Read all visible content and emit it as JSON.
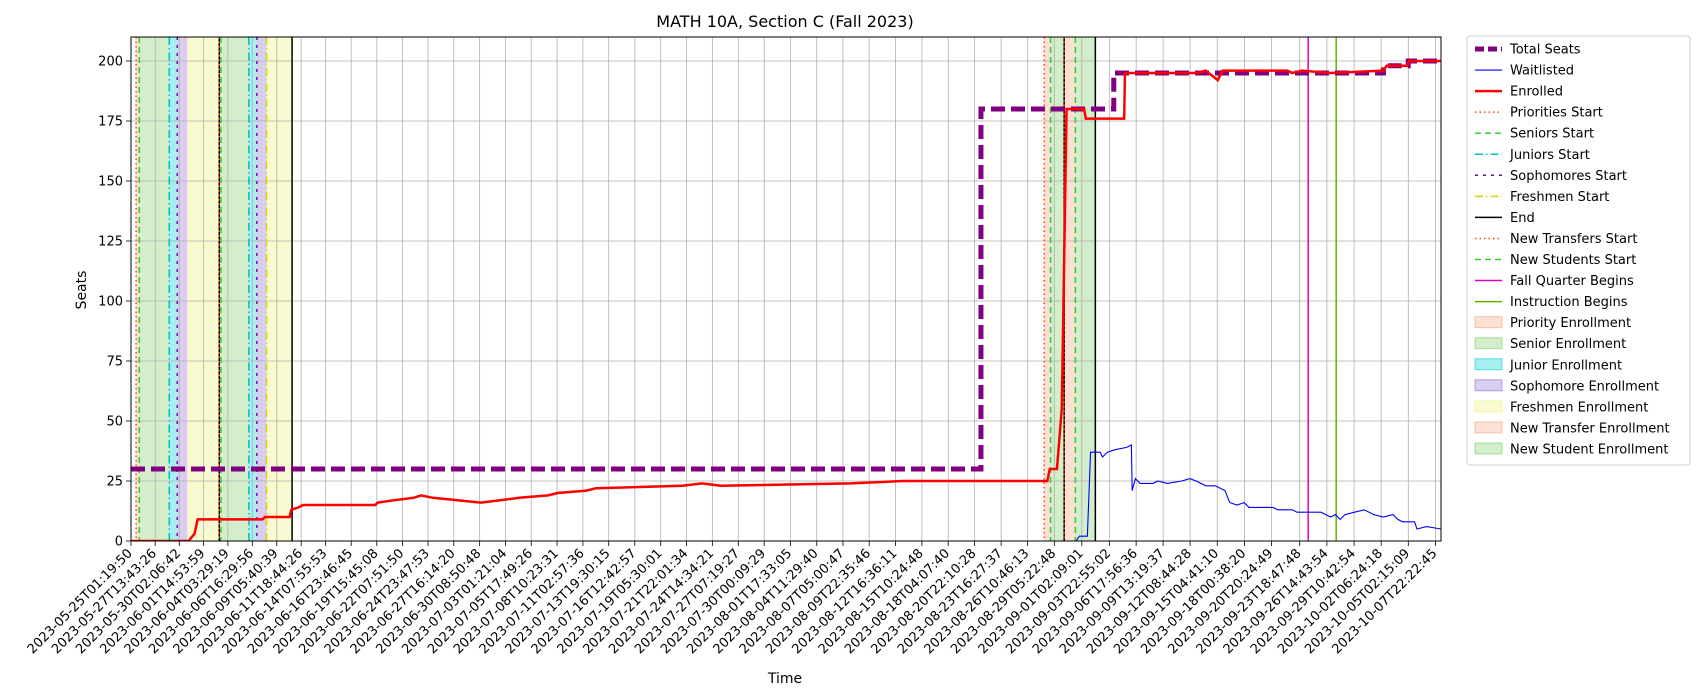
{
  "chart_data": {
    "type": "line",
    "title": "MATH 10A, Section C (Fall 2023)",
    "xlabel": "Time",
    "ylabel": "Seats",
    "ylim": [
      0,
      210
    ],
    "yticks": [
      0,
      25,
      50,
      75,
      100,
      125,
      150,
      175,
      200
    ],
    "grid": true,
    "legend_position": "outside-right",
    "x_start": "2023-05-25T01:19:50",
    "x_end": "2023-10-08T12:00:00",
    "xtick_labels": [
      "2023-05-25T01:19:50",
      "2023-05-27T13:43:26",
      "2023-05-30T02:06:42",
      "2023-06-01T14:53:59",
      "2023-06-04T03:29:19",
      "2023-06-06T16:29:56",
      "2023-06-09T05:40:39",
      "2023-06-11T18:44:26",
      "2023-06-14T07:55:53",
      "2023-06-16T23:46:45",
      "2023-06-19T15:45:08",
      "2023-06-22T07:51:50",
      "2023-06-24T23:47:53",
      "2023-06-27T16:14:20",
      "2023-06-30T08:50:48",
      "2023-07-03T01:21:04",
      "2023-07-05T17:49:26",
      "2023-07-08T10:23:31",
      "2023-07-11T02:57:36",
      "2023-07-13T19:30:15",
      "2023-07-16T12:42:57",
      "2023-07-19T05:30:01",
      "2023-07-21T22:01:34",
      "2023-07-24T14:34:21",
      "2023-07-27T07:19:27",
      "2023-07-30T00:09:29",
      "2023-08-01T17:33:05",
      "2023-08-04T11:29:40",
      "2023-08-07T05:00:47",
      "2023-08-09T22:35:46",
      "2023-08-12T16:36:11",
      "2023-08-15T10:24:48",
      "2023-08-18T04:07:40",
      "2023-08-20T22:10:28",
      "2023-08-23T16:27:37",
      "2023-08-26T10:46:13",
      "2023-08-29T05:22:48",
      "2023-09-01T02:09:01",
      "2023-09-03T22:55:02",
      "2023-09-06T17:56:36",
      "2023-09-09T13:19:37",
      "2023-09-12T08:44:28",
      "2023-09-15T04:41:10",
      "2023-09-18T00:38:20",
      "2023-09-20T20:24:49",
      "2023-09-23T18:47:48",
      "2023-09-26T14:43:54",
      "2023-09-29T10:42:54",
      "2023-10-02T06:24:18",
      "2023-10-05T02:15:09",
      "2023-10-07T22:22:45"
    ],
    "series": [
      {
        "name": "Total Seats",
        "color": "#800080",
        "style": "dashed-thick",
        "points": [
          [
            "2023-05-25T01:19:50",
            30
          ],
          [
            "2023-08-21T14:00:00",
            30
          ],
          [
            "2023-08-21T14:00:00",
            180
          ],
          [
            "2023-09-04T10:00:00",
            180
          ],
          [
            "2023-09-04T10:00:00",
            195
          ],
          [
            "2023-09-29T00:00:00",
            195
          ],
          [
            "2023-09-29T00:00:00",
            195
          ],
          [
            "2023-10-02T12:00:00",
            195
          ],
          [
            "2023-10-02T12:00:00",
            198
          ],
          [
            "2023-10-05T02:00:00",
            198
          ],
          [
            "2023-10-05T02:00:00",
            200
          ],
          [
            "2023-10-08T12:00:00",
            200
          ]
        ]
      },
      {
        "name": "Waitlisted",
        "color": "#0000ff",
        "style": "solid-thin",
        "points": [
          [
            "2023-05-25T01:19:50",
            0
          ],
          [
            "2023-08-31T12:00:00",
            0
          ],
          [
            "2023-08-31T20:00:00",
            2
          ],
          [
            "2023-09-01T16:00:00",
            2
          ],
          [
            "2023-09-02T00:00:00",
            37
          ],
          [
            "2023-09-03T00:00:00",
            37
          ],
          [
            "2023-09-03T06:00:00",
            35
          ],
          [
            "2023-09-03T18:00:00",
            37
          ],
          [
            "2023-09-04T12:00:00",
            38
          ],
          [
            "2023-09-05T18:00:00",
            39
          ],
          [
            "2023-09-06T06:00:00",
            40
          ],
          [
            "2023-09-06T08:00:00",
            21
          ],
          [
            "2023-09-06T16:00:00",
            26
          ],
          [
            "2023-09-07T04:00:00",
            24
          ],
          [
            "2023-09-08T12:00:00",
            24
          ],
          [
            "2023-09-09T00:00:00",
            25
          ],
          [
            "2023-09-10T00:00:00",
            24
          ],
          [
            "2023-09-11T12:00:00",
            25
          ],
          [
            "2023-09-12T08:00:00",
            26
          ],
          [
            "2023-09-13T00:00:00",
            25
          ],
          [
            "2023-09-14T00:00:00",
            23
          ],
          [
            "2023-09-15T00:00:00",
            23
          ],
          [
            "2023-09-16T00:00:00",
            21
          ],
          [
            "2023-09-16T12:00:00",
            16
          ],
          [
            "2023-09-17T06:00:00",
            15
          ],
          [
            "2023-09-18T00:00:00",
            16
          ],
          [
            "2023-09-18T12:00:00",
            14
          ],
          [
            "2023-09-20T00:00:00",
            14
          ],
          [
            "2023-09-21T00:00:00",
            14
          ],
          [
            "2023-09-21T12:00:00",
            13
          ],
          [
            "2023-09-23T00:00:00",
            13
          ],
          [
            "2023-09-23T12:00:00",
            12
          ],
          [
            "2023-09-26T00:00:00",
            12
          ],
          [
            "2023-09-26T12:00:00",
            11
          ],
          [
            "2023-09-27T00:00:00",
            10
          ],
          [
            "2023-09-27T12:00:00",
            11
          ],
          [
            "2023-09-28T00:00:00",
            9
          ],
          [
            "2023-09-28T12:00:00",
            11
          ],
          [
            "2023-09-29T12:00:00",
            12
          ],
          [
            "2023-09-30T12:00:00",
            13
          ],
          [
            "2023-10-01T12:00:00",
            11
          ],
          [
            "2023-10-02T12:00:00",
            10
          ],
          [
            "2023-10-03T12:00:00",
            11
          ],
          [
            "2023-10-04T00:00:00",
            9
          ],
          [
            "2023-10-04T12:00:00",
            8
          ],
          [
            "2023-10-05T18:00:00",
            8
          ],
          [
            "2023-10-06T00:00:00",
            5
          ],
          [
            "2023-10-07T00:00:00",
            6
          ],
          [
            "2023-10-08T12:00:00",
            5
          ]
        ]
      },
      {
        "name": "Enrolled",
        "color": "#ff0000",
        "style": "solid-thick",
        "points": [
          [
            "2023-05-25T01:19:50",
            0
          ],
          [
            "2023-05-31T02:00:00",
            0
          ],
          [
            "2023-05-31T06:00:00",
            1
          ],
          [
            "2023-05-31T16:00:00",
            3
          ],
          [
            "2023-06-01T00:00:00",
            9
          ],
          [
            "2023-06-07T18:00:00",
            9
          ],
          [
            "2023-06-08T00:00:00",
            10
          ],
          [
            "2023-06-10T14:00:00",
            10
          ],
          [
            "2023-06-10T18:00:00",
            13
          ],
          [
            "2023-06-11T12:00:00",
            14
          ],
          [
            "2023-06-12T00:00:00",
            15
          ],
          [
            "2023-06-19T12:00:00",
            15
          ],
          [
            "2023-06-19T18:00:00",
            16
          ],
          [
            "2023-06-21T12:00:00",
            17
          ],
          [
            "2023-06-23T12:00:00",
            18
          ],
          [
            "2023-06-24T06:00:00",
            19
          ],
          [
            "2023-06-25T12:00:00",
            18
          ],
          [
            "2023-06-30T12:00:00",
            16
          ],
          [
            "2023-07-04T12:00:00",
            18
          ],
          [
            "2023-07-07T12:00:00",
            19
          ],
          [
            "2023-07-08T12:00:00",
            20
          ],
          [
            "2023-07-11T12:00:00",
            21
          ],
          [
            "2023-07-12T12:00:00",
            22
          ],
          [
            "2023-07-21T12:00:00",
            23
          ],
          [
            "2023-07-23T12:00:00",
            24
          ],
          [
            "2023-07-25T12:00:00",
            23
          ],
          [
            "2023-08-08T00:00:00",
            24
          ],
          [
            "2023-08-13T12:00:00",
            25
          ],
          [
            "2023-08-28T12:00:00",
            25
          ],
          [
            "2023-08-28T18:00:00",
            30
          ],
          [
            "2023-08-29T12:00:00",
            30
          ],
          [
            "2023-08-30T00:00:00",
            55
          ],
          [
            "2023-08-30T12:00:00",
            180
          ],
          [
            "2023-09-01T08:00:00",
            180
          ],
          [
            "2023-09-01T12:00:00",
            176
          ],
          [
            "2023-09-05T12:00:00",
            176
          ],
          [
            "2023-09-05T14:00:00",
            195
          ],
          [
            "2023-09-13T00:00:00",
            195
          ],
          [
            "2023-09-14T00:00:00",
            196
          ],
          [
            "2023-09-15T06:00:00",
            192
          ],
          [
            "2023-09-15T18:00:00",
            196
          ],
          [
            "2023-09-22T12:00:00",
            196
          ],
          [
            "2023-09-23T00:00:00",
            195
          ],
          [
            "2023-09-24T00:00:00",
            196
          ],
          [
            "2023-09-27T00:00:00",
            195
          ],
          [
            "2023-10-02T12:00:00",
            196
          ],
          [
            "2023-10-02T20:00:00",
            198
          ],
          [
            "2023-10-05T00:00:00",
            198
          ],
          [
            "2023-10-05T04:00:00",
            200
          ],
          [
            "2023-10-08T12:00:00",
            200
          ]
        ]
      }
    ],
    "spans": [
      {
        "name": "Priority Enrollment",
        "color": "#f4a582",
        "start": "2023-05-25T14:00:00",
        "end": "2023-05-25T22:00:00"
      },
      {
        "name": "Senior Enrollment",
        "color": "#7fcf6b",
        "start": "2023-05-25T22:00:00",
        "end": "2023-05-29T01:00:00"
      },
      {
        "name": "Junior Enrollment",
        "color": "#00ced1",
        "start": "2023-05-29T01:00:00",
        "end": "2023-05-29T21:00:00"
      },
      {
        "name": "Sophomore Enrollment",
        "color": "#9370db",
        "start": "2023-05-29T21:00:00",
        "end": "2023-05-30T22:00:00"
      },
      {
        "name": "Freshmen Enrollment",
        "color": "#f0f07a",
        "start": "2023-05-30T22:00:00",
        "end": "2023-06-03T06:00:00"
      },
      {
        "name": "Priority Enrollment",
        "color": "#f4a582",
        "start": "2023-06-03T06:00:00",
        "end": "2023-06-03T10:00:00"
      },
      {
        "name": "Senior Enrollment",
        "color": "#7fcf6b",
        "start": "2023-06-03T10:00:00",
        "end": "2023-06-06T08:00:00"
      },
      {
        "name": "Junior Enrollment",
        "color": "#00ced1",
        "start": "2023-06-06T08:00:00",
        "end": "2023-06-07T04:00:00"
      },
      {
        "name": "Sophomore Enrollment",
        "color": "#9370db",
        "start": "2023-06-07T04:00:00",
        "end": "2023-06-08T04:00:00"
      },
      {
        "name": "Freshmen Enrollment",
        "color": "#f0f07a",
        "start": "2023-06-08T04:00:00",
        "end": "2023-06-10T20:00:00"
      },
      {
        "name": "New Transfer Enrollment",
        "color": "#f4a582",
        "start": "2023-08-28T04:00:00",
        "end": "2023-08-28T20:00:00"
      },
      {
        "name": "New Student Enrollment",
        "color": "#7fcf6b",
        "start": "2023-08-28T20:00:00",
        "end": "2023-08-30T06:00:00"
      },
      {
        "name": "New Transfer Enrollment",
        "color": "#f4a582",
        "start": "2023-08-30T06:00:00",
        "end": "2023-08-31T10:00:00"
      },
      {
        "name": "New Student Enrollment",
        "color": "#7fcf6b",
        "start": "2023-08-31T10:00:00",
        "end": "2023-09-02T12:00:00"
      }
    ],
    "vlines": [
      {
        "name": "Priorities Start",
        "color": "#ff4500",
        "style": "dotted",
        "x": "2023-05-25T14:00:00"
      },
      {
        "name": "Seniors Start",
        "color": "#32cd32",
        "style": "dashed",
        "x": "2023-05-25T22:00:00"
      },
      {
        "name": "Juniors Start",
        "color": "#00bfbf",
        "style": "dashdot",
        "x": "2023-05-29T01:00:00"
      },
      {
        "name": "Sophomores Start",
        "color": "#6a0dad",
        "style": "densedash",
        "x": "2023-05-29T21:00:00"
      },
      {
        "name": "End",
        "color": "#000000",
        "style": "solid",
        "x": "2023-06-03T06:00:00"
      },
      {
        "name": "Priorities Start",
        "color": "#ff4500",
        "style": "dotted",
        "x": "2023-06-03T06:00:00"
      },
      {
        "name": "Seniors Start",
        "color": "#32cd32",
        "style": "dashed",
        "x": "2023-06-03T10:00:00"
      },
      {
        "name": "Juniors Start",
        "color": "#00bfbf",
        "style": "dashdot",
        "x": "2023-06-06T08:00:00"
      },
      {
        "name": "Sophomores Start",
        "color": "#6a0dad",
        "style": "densedash",
        "x": "2023-06-07T04:00:00"
      },
      {
        "name": "Freshmen Start",
        "color": "#d4d400",
        "style": "dashdot",
        "x": "2023-06-08T04:00:00"
      },
      {
        "name": "End",
        "color": "#000000",
        "style": "solid",
        "x": "2023-06-10T20:00:00"
      },
      {
        "name": "New Transfers Start",
        "color": "#ff4500",
        "style": "dotted",
        "x": "2023-08-28T04:00:00"
      },
      {
        "name": "New Students Start",
        "color": "#32cd32",
        "style": "dashed",
        "x": "2023-08-28T20:00:00"
      },
      {
        "name": "End",
        "color": "#000000",
        "style": "solid",
        "x": "2023-08-30T06:00:00"
      },
      {
        "name": "New Transfers Start",
        "color": "#ff4500",
        "style": "dotted",
        "x": "2023-08-30T06:00:00"
      },
      {
        "name": "New Students Start",
        "color": "#32cd32",
        "style": "dashed",
        "x": "2023-08-31T10:00:00"
      },
      {
        "name": "End",
        "color": "#000000",
        "style": "solid",
        "x": "2023-09-02T12:00:00"
      },
      {
        "name": "Fall Quarter Begins",
        "color": "#e000c0",
        "style": "solid",
        "x": "2023-09-24T16:00:00"
      },
      {
        "name": "Instruction Begins",
        "color": "#66b000",
        "style": "solid",
        "x": "2023-09-27T14:00:00"
      }
    ],
    "legend": [
      {
        "label": "Total Seats",
        "kind": "line",
        "color": "#800080",
        "style": "dashed-thick"
      },
      {
        "label": "Waitlisted",
        "kind": "line",
        "color": "#0000ff",
        "style": "solid-thin"
      },
      {
        "label": "Enrolled",
        "kind": "line",
        "color": "#ff0000",
        "style": "solid-thick"
      },
      {
        "label": "Priorities Start",
        "kind": "line",
        "color": "#ff4500",
        "style": "dotted"
      },
      {
        "label": "Seniors Start",
        "kind": "line",
        "color": "#32cd32",
        "style": "dashed"
      },
      {
        "label": "Juniors Start",
        "kind": "line",
        "color": "#00bfbf",
        "style": "dashdot"
      },
      {
        "label": "Sophomores Start",
        "kind": "line",
        "color": "#6a0dad",
        "style": "densedash"
      },
      {
        "label": "Freshmen Start",
        "kind": "line",
        "color": "#d4d400",
        "style": "dashdot"
      },
      {
        "label": "End",
        "kind": "line",
        "color": "#000000",
        "style": "solid"
      },
      {
        "label": "New Transfers Start",
        "kind": "line",
        "color": "#ff4500",
        "style": "dotted"
      },
      {
        "label": "New Students Start",
        "kind": "line",
        "color": "#32cd32",
        "style": "dashed"
      },
      {
        "label": "Fall Quarter Begins",
        "kind": "line",
        "color": "#e000c0",
        "style": "solid"
      },
      {
        "label": "Instruction Begins",
        "kind": "line",
        "color": "#66b000",
        "style": "solid"
      },
      {
        "label": "Priority Enrollment",
        "kind": "patch",
        "color": "#f4a582"
      },
      {
        "label": "Senior Enrollment",
        "kind": "patch",
        "color": "#7fcf6b"
      },
      {
        "label": "Junior Enrollment",
        "kind": "patch",
        "color": "#00ced1"
      },
      {
        "label": "Sophomore Enrollment",
        "kind": "patch",
        "color": "#9370db"
      },
      {
        "label": "Freshmen Enrollment",
        "kind": "patch",
        "color": "#f0f07a"
      },
      {
        "label": "New Transfer Enrollment",
        "kind": "patch",
        "color": "#f4a582"
      },
      {
        "label": "New Student Enrollment",
        "kind": "patch",
        "color": "#7fcf6b"
      }
    ]
  }
}
